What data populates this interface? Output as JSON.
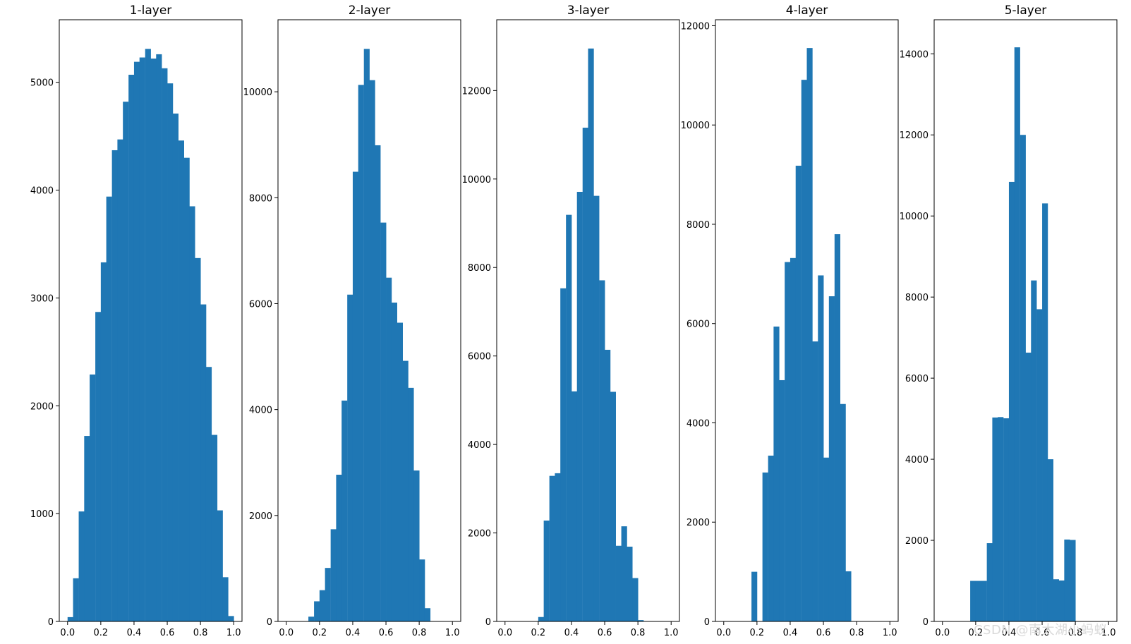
{
  "watermark": "CSDN @南太湖小蚂蚁",
  "chart_data": [
    {
      "type": "bar",
      "title": "1-layer",
      "bin_width": 0.033,
      "bins": [
        0.0,
        0.033,
        0.067,
        0.1,
        0.133,
        0.167,
        0.2,
        0.233,
        0.267,
        0.3,
        0.333,
        0.367,
        0.4,
        0.433,
        0.467,
        0.5,
        0.533,
        0.567,
        0.6,
        0.633,
        0.667,
        0.7,
        0.733,
        0.767,
        0.8,
        0.833,
        0.867,
        0.9,
        0.933,
        0.967
      ],
      "values": [
        40,
        400,
        1020,
        1720,
        2290,
        2870,
        3330,
        3940,
        4370,
        4470,
        4820,
        5070,
        5190,
        5230,
        5310,
        5220,
        5260,
        5130,
        4990,
        4710,
        4460,
        4300,
        3850,
        3370,
        2940,
        2360,
        1730,
        1030,
        410,
        50
      ],
      "xticks": [
        "0.0",
        "0.2",
        "0.4",
        "0.6",
        "0.8",
        "1.0"
      ],
      "xtick_values": [
        0,
        0.2,
        0.4,
        0.6,
        0.8,
        1.0
      ],
      "yticks": [
        "0",
        "1000",
        "2000",
        "3000",
        "4000",
        "5000"
      ],
      "ytick_values": [
        0,
        1000,
        2000,
        3000,
        4000,
        5000
      ],
      "xlim": [
        -0.05,
        1.05
      ],
      "ylim": [
        0,
        5580
      ]
    },
    {
      "type": "bar",
      "title": "2-layer",
      "bin_width": 0.033,
      "bins": [
        0.133,
        0.167,
        0.2,
        0.233,
        0.267,
        0.3,
        0.333,
        0.367,
        0.4,
        0.433,
        0.467,
        0.5,
        0.533,
        0.567,
        0.6,
        0.633,
        0.667,
        0.7,
        0.733,
        0.767,
        0.8,
        0.833
      ],
      "values": [
        90,
        380,
        590,
        1010,
        1740,
        2770,
        4170,
        6170,
        8490,
        10130,
        10810,
        10220,
        8990,
        7530,
        6490,
        6020,
        5640,
        4920,
        4410,
        2850,
        1170,
        250
      ],
      "xticks": [
        "0.0",
        "0.2",
        "0.4",
        "0.6",
        "0.8",
        "1.0"
      ],
      "xtick_values": [
        0,
        0.2,
        0.4,
        0.6,
        0.8,
        1.0
      ],
      "yticks": [
        "0",
        "2000",
        "4000",
        "6000",
        "8000",
        "10000"
      ],
      "ytick_values": [
        0,
        2000,
        4000,
        6000,
        8000,
        10000
      ],
      "xlim": [
        -0.05,
        1.05
      ],
      "ylim": [
        0,
        11360
      ]
    },
    {
      "type": "bar",
      "title": "3-layer",
      "bin_width": 0.033,
      "bins": [
        0.2,
        0.233,
        0.267,
        0.3,
        0.333,
        0.367,
        0.4,
        0.433,
        0.467,
        0.5,
        0.533,
        0.567,
        0.6,
        0.633,
        0.667,
        0.7,
        0.733,
        0.767,
        0.8
      ],
      "values": [
        100,
        2280,
        3290,
        3350,
        7530,
        9190,
        5200,
        9710,
        11160,
        12950,
        9620,
        7710,
        6140,
        5190,
        1710,
        2150,
        1690,
        980,
        30
      ],
      "xticks": [
        "0.0",
        "0.2",
        "0.4",
        "0.6",
        "0.8",
        "1.0"
      ],
      "xtick_values": [
        0,
        0.2,
        0.4,
        0.6,
        0.8,
        1.0
      ],
      "yticks": [
        "0",
        "2000",
        "4000",
        "6000",
        "8000",
        "10000",
        "12000"
      ],
      "ytick_values": [
        0,
        2000,
        4000,
        6000,
        8000,
        10000,
        12000
      ],
      "xlim": [
        -0.05,
        1.05
      ],
      "ylim": [
        0,
        13600
      ]
    },
    {
      "type": "bar",
      "title": "4-layer",
      "bin_width": 0.033,
      "bins": [
        0.167,
        0.233,
        0.267,
        0.3,
        0.333,
        0.367,
        0.4,
        0.433,
        0.467,
        0.5,
        0.533,
        0.567,
        0.6,
        0.633,
        0.667,
        0.7,
        0.733
      ],
      "values": [
        1000,
        3000,
        3340,
        5940,
        4860,
        7240,
        7320,
        9180,
        10910,
        11550,
        5640,
        6970,
        3300,
        6550,
        7800,
        4380,
        1010
      ],
      "xticks": [
        "0.0",
        "0.2",
        "0.4",
        "0.6",
        "0.8",
        "1.0"
      ],
      "xtick_values": [
        0,
        0.2,
        0.4,
        0.6,
        0.8,
        1.0
      ],
      "yticks": [
        "0",
        "2000",
        "4000",
        "6000",
        "8000",
        "10000",
        "12000"
      ],
      "ytick_values": [
        0,
        2000,
        4000,
        6000,
        8000,
        10000,
        12000
      ],
      "xlim": [
        -0.05,
        1.05
      ],
      "ylim": [
        0,
        12120
      ]
    },
    {
      "type": "bar",
      "title": "5-layer",
      "bin_width": 0.033,
      "bins": [
        0.167,
        0.2,
        0.233,
        0.267,
        0.3,
        0.333,
        0.367,
        0.4,
        0.433,
        0.467,
        0.5,
        0.533,
        0.567,
        0.6,
        0.633,
        0.667,
        0.7,
        0.733,
        0.767
      ],
      "values": [
        1000,
        1000,
        1000,
        1930,
        5030,
        5040,
        5010,
        10840,
        14160,
        12000,
        6630,
        8410,
        7700,
        10310,
        4000,
        1040,
        1010,
        2020,
        2010
      ],
      "xticks": [
        "0.0",
        "0.2",
        "0.4",
        "0.6",
        "0.8",
        "1.0"
      ],
      "xtick_values": [
        0,
        0.2,
        0.4,
        0.6,
        0.8,
        1.0
      ],
      "yticks": [
        "0",
        "2000",
        "4000",
        "6000",
        "8000",
        "10000",
        "12000",
        "14000"
      ],
      "ytick_values": [
        0,
        2000,
        4000,
        6000,
        8000,
        10000,
        12000,
        14000
      ],
      "xlim": [
        -0.05,
        1.05
      ],
      "ylim": [
        0,
        14840
      ]
    }
  ],
  "colors": {
    "bar": "#1f77b4",
    "axes": "#000000",
    "background": "#ffffff"
  }
}
